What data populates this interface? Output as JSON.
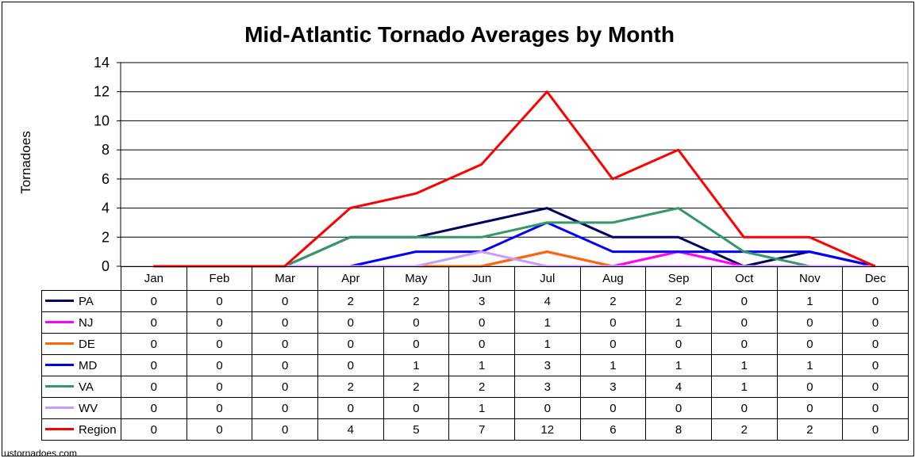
{
  "chart_data": {
    "type": "line",
    "title": "Mid-Atlantic Tornado Averages by Month",
    "ylabel": "Tornadoes",
    "xlabel": "",
    "ylim": [
      0,
      14
    ],
    "yticks": [
      0,
      2,
      4,
      6,
      8,
      10,
      12,
      14
    ],
    "grid": true,
    "legend": "data-table",
    "categories": [
      "Jan",
      "Feb",
      "Mar",
      "Apr",
      "May",
      "Jun",
      "Jul",
      "Aug",
      "Sep",
      "Oct",
      "Nov",
      "Dec"
    ],
    "series": [
      {
        "name": "PA",
        "color": "#000066",
        "values": [
          0,
          0,
          0,
          2,
          2,
          3,
          4,
          2,
          2,
          0,
          1,
          0
        ]
      },
      {
        "name": "NJ",
        "color": "#ff00ff",
        "values": [
          0,
          0,
          0,
          0,
          0,
          0,
          1,
          0,
          1,
          0,
          0,
          0
        ]
      },
      {
        "name": "DE",
        "color": "#ff6600",
        "values": [
          0,
          0,
          0,
          0,
          0,
          0,
          1,
          0,
          0,
          0,
          0,
          0
        ]
      },
      {
        "name": "MD",
        "color": "#0000ff",
        "values": [
          0,
          0,
          0,
          0,
          1,
          1,
          3,
          1,
          1,
          1,
          1,
          0
        ]
      },
      {
        "name": "VA",
        "color": "#339966",
        "values": [
          0,
          0,
          0,
          2,
          2,
          2,
          3,
          3,
          4,
          1,
          0,
          0
        ]
      },
      {
        "name": "WV",
        "color": "#cc99ff",
        "values": [
          0,
          0,
          0,
          0,
          0,
          1,
          0,
          0,
          0,
          0,
          0,
          0
        ]
      },
      {
        "name": "Region",
        "color": "#ff0000",
        "values": [
          0,
          0,
          0,
          4,
          5,
          7,
          12,
          6,
          8,
          2,
          2,
          0
        ]
      }
    ]
  },
  "footer": {
    "credit": "ustornadoes.com"
  }
}
